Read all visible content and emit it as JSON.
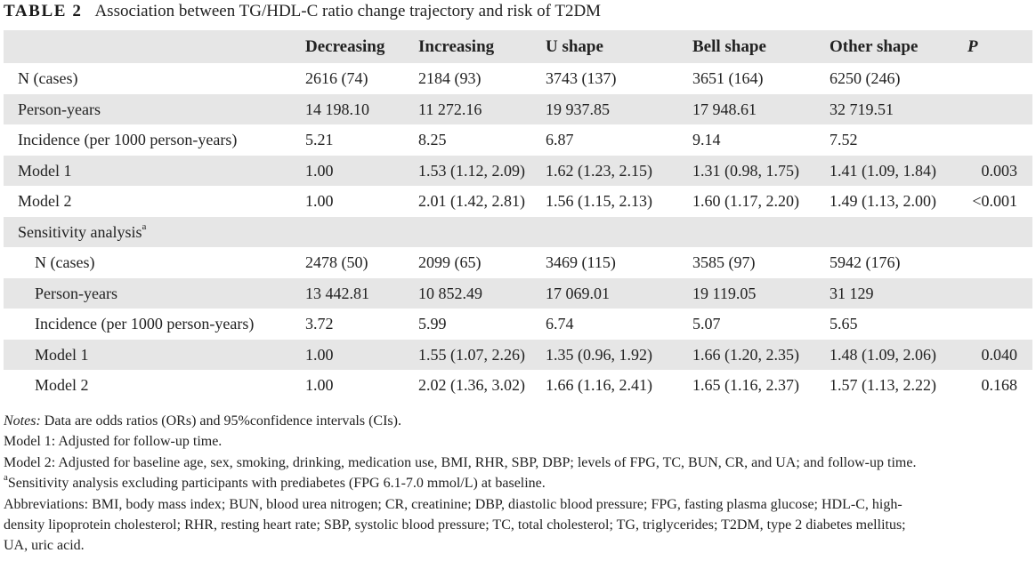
{
  "caption": {
    "label": "TABLE 2",
    "title": "Association between TG/HDL-C ratio change trajectory and risk of T2DM"
  },
  "table": {
    "columns": [
      "",
      "Decreasing",
      "Increasing",
      "U shape",
      "Bell shape",
      "Other shape",
      "P"
    ],
    "rows": [
      {
        "label": "N (cases)",
        "values": [
          "2616 (74)",
          "2184 (93)",
          "3743 (137)",
          "3651 (164)",
          "6250 (246)",
          ""
        ]
      },
      {
        "label": "Person-years",
        "values": [
          "14 198.10",
          "11 272.16",
          "19 937.85",
          "17 948.61",
          "32 719.51",
          ""
        ]
      },
      {
        "label": "Incidence (per 1000 person-years)",
        "values": [
          "5.21",
          "8.25",
          "6.87",
          "9.14",
          "7.52",
          ""
        ]
      },
      {
        "label": "Model 1",
        "values": [
          "1.00",
          "1.53 (1.12, 2.09)",
          "1.62 (1.23, 2.15)",
          "1.31 (0.98, 1.75)",
          "1.41 (1.09, 1.84)",
          "0.003"
        ]
      },
      {
        "label": "Model 2",
        "values": [
          "1.00",
          "2.01 (1.42, 2.81)",
          "1.56 (1.15, 2.13)",
          "1.60 (1.17, 2.20)",
          "1.49 (1.13, 2.00)",
          "<0.001"
        ]
      }
    ],
    "sensitivity": {
      "label": "Sensitivity analysis",
      "sup": "a",
      "rows": [
        {
          "label": "N (cases)",
          "values": [
            "2478 (50)",
            "2099 (65)",
            "3469 (115)",
            "3585 (97)",
            "5942 (176)",
            ""
          ]
        },
        {
          "label": "Person-years",
          "values": [
            "13 442.81",
            "10 852.49",
            "17 069.01",
            "19 119.05",
            "31 129",
            ""
          ]
        },
        {
          "label": "Incidence (per 1000 person-years)",
          "values": [
            "3.72",
            "5.99",
            "6.74",
            "5.07",
            "5.65",
            ""
          ]
        },
        {
          "label": "Model 1",
          "values": [
            "1.00",
            "1.55 (1.07, 2.26)",
            "1.35 (0.96, 1.92)",
            "1.66 (1.20, 2.35)",
            "1.48 (1.09, 2.06)",
            "0.040"
          ]
        },
        {
          "label": "Model 2",
          "values": [
            "1.00",
            "2.02 (1.36, 3.02)",
            "1.66 (1.16, 2.41)",
            "1.65 (1.16, 2.37)",
            "1.57 (1.13, 2.22)",
            "0.168"
          ]
        }
      ]
    }
  },
  "notes": {
    "notes_label": "Notes:",
    "notes_text": " Data are odds ratios (ORs) and 95%confidence intervals (CIs).",
    "model1": "Model 1: Adjusted for follow-up time.",
    "model2": "Model 2: Adjusted for baseline age, sex, smoking, drinking, medication use, BMI, RHR, SBP, DBP; levels of FPG, TC, BUN, CR, and UA; and follow-up time.",
    "footnote_sup": "a",
    "footnote_text": "Sensitivity analysis excluding participants with prediabetes (FPG 6.1-7.0 mmol/L) at baseline.",
    "abbrev_line1": "Abbreviations: BMI, body mass index; BUN, blood urea nitrogen; CR, creatinine; DBP, diastolic blood pressure; FPG, fasting plasma glucose; HDL-C, high-",
    "abbrev_line2": "density lipoprotein cholesterol; RHR, resting heart rate; SBP, systolic blood pressure; TC, total cholesterol; TG, triglycerides; T2DM, type 2 diabetes mellitus;",
    "abbrev_line3": "UA, uric acid."
  }
}
